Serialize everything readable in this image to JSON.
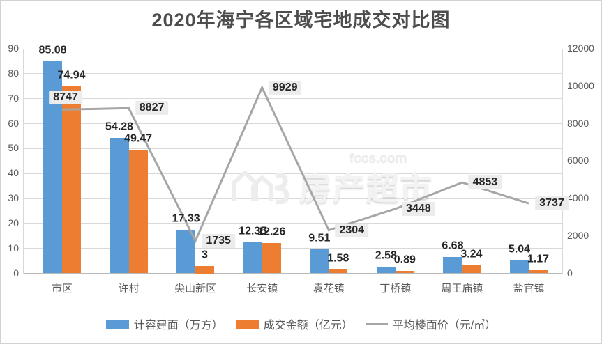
{
  "title": "2020年海宁各区域宅地成交对比图",
  "watermark": {
    "site": "fccs.com",
    "text": "房产超市"
  },
  "chart_data": {
    "type": "bar",
    "subtype": "bar-line-combo",
    "title": "2020年海宁各区域宅地成交对比图",
    "categories": [
      "市区",
      "许村",
      "尖山新区",
      "长安镇",
      "袁花镇",
      "丁桥镇",
      "周王庙镇",
      "盐官镇"
    ],
    "series": [
      {
        "id": "floor-area",
        "name": "计容建面（万方）",
        "type": "bar",
        "axis": "left",
        "color": "#5B9BD5",
        "values": [
          85.08,
          54.28,
          17.33,
          12.35,
          9.51,
          2.58,
          6.68,
          5.04
        ]
      },
      {
        "id": "transaction-amount",
        "name": "成交金额（亿元）",
        "type": "bar",
        "axis": "left",
        "color": "#ED7D31",
        "values": [
          74.94,
          49.47,
          3,
          12.26,
          1.58,
          0.89,
          3.24,
          1.17
        ]
      },
      {
        "id": "avg-floor-price",
        "name": "平均楼面价（元/㎡）",
        "type": "line",
        "axis": "right",
        "color": "#A6A6A6",
        "values": [
          8747,
          8827,
          1735,
          9929,
          2304,
          3448,
          4853,
          3737
        ]
      }
    ],
    "left_axis": {
      "min": 0,
      "max": 90,
      "step": 10,
      "ticks": [
        0,
        10,
        20,
        30,
        40,
        50,
        60,
        70,
        80,
        90
      ]
    },
    "right_axis": {
      "min": 0,
      "max": 12000,
      "step": 2000,
      "ticks": [
        0,
        2000,
        4000,
        6000,
        8000,
        10000,
        12000
      ]
    },
    "grid": true,
    "legend_position": "bottom",
    "colors": {
      "gridline": "#D9D9D9",
      "axis_text": "#595959",
      "data_label": "#262626",
      "line_label_bg": "#ECECEC",
      "title": "#4D4D4D"
    }
  }
}
